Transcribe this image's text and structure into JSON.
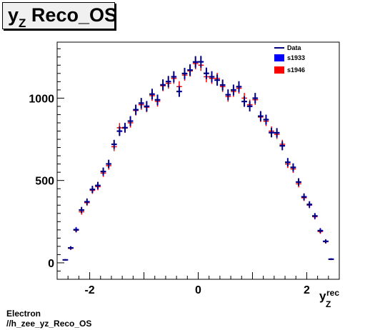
{
  "title": {
    "main": "y",
    "sub": "Z",
    "rest": " Reco_OS"
  },
  "footer": {
    "line1": "Electron",
    "line2": "//h_zee_yz_Reco_OS"
  },
  "colors": {
    "data": "#000080",
    "s1933": "#0000ff",
    "s1946": "#ff0000"
  },
  "chart_data": {
    "type": "scatter",
    "xlabel": {
      "main": "y",
      "sub": "Z",
      "sup": "rec"
    },
    "ylabel": "",
    "xlim": [
      -2.6,
      2.6
    ],
    "ylim": [
      -100,
      1340
    ],
    "x_ticks": [
      -2,
      0,
      2
    ],
    "x_tick_labels": [
      "-2",
      "0",
      "2"
    ],
    "y_ticks": [
      0,
      500,
      1000
    ],
    "y_tick_labels": [
      "0",
      "500",
      "1000"
    ],
    "legend_position": "top-right",
    "legend": [
      {
        "label": "Data",
        "style": "line"
      },
      {
        "label": "s1933",
        "style": "box"
      },
      {
        "label": "s1946",
        "style": "box"
      }
    ],
    "x": [
      -2.45,
      -2.35,
      -2.25,
      -2.15,
      -2.05,
      -1.95,
      -1.85,
      -1.75,
      -1.65,
      -1.55,
      -1.45,
      -1.35,
      -1.25,
      -1.15,
      -1.05,
      -0.95,
      -0.85,
      -0.75,
      -0.65,
      -0.55,
      -0.45,
      -0.35,
      -0.25,
      -0.15,
      -0.05,
      0.05,
      0.15,
      0.25,
      0.35,
      0.45,
      0.55,
      0.65,
      0.75,
      0.85,
      0.95,
      1.05,
      1.15,
      1.25,
      1.35,
      1.45,
      1.55,
      1.65,
      1.75,
      1.85,
      1.95,
      2.05,
      2.15,
      2.25,
      2.35,
      2.45
    ],
    "series": [
      {
        "name": "Data",
        "values": [
          18,
          90,
          200,
          320,
          370,
          445,
          470,
          555,
          600,
          720,
          800,
          820,
          860,
          930,
          970,
          950,
          1025,
          990,
          1080,
          1100,
          1130,
          1040,
          1150,
          1170,
          1220,
          1220,
          1150,
          1130,
          1110,
          1080,
          1020,
          1050,
          1070,
          980,
          950,
          1000,
          890,
          870,
          790,
          790,
          710,
          610,
          580,
          490,
          400,
          355,
          285,
          195,
          130,
          22
        ]
      },
      {
        "name": "s1933",
        "values": [
          18,
          92,
          203,
          322,
          372,
          447,
          468,
          553,
          602,
          718,
          798,
          822,
          862,
          928,
          968,
          952,
          1023,
          988,
          1082,
          1102,
          1128,
          1042,
          1148,
          1172,
          1218,
          1222,
          1152,
          1128,
          1108,
          1078,
          1022,
          1048,
          1068,
          978,
          952,
          998,
          892,
          868,
          792,
          788,
          712,
          612,
          578,
          492,
          402,
          352,
          283,
          197,
          132,
          23
        ]
      },
      {
        "name": "s1946",
        "values": [
          17,
          88,
          198,
          310,
          365,
          440,
          462,
          545,
          590,
          705,
          820,
          818,
          850,
          925,
          960,
          945,
          1015,
          980,
          1075,
          1090,
          1120,
          1070,
          1140,
          1165,
          1210,
          1200,
          1130,
          1120,
          1120,
          1070,
          1010,
          1040,
          1060,
          1000,
          960,
          990,
          885,
          860,
          800,
          780,
          720,
          600,
          570,
          480,
          395,
          350,
          280,
          190,
          128,
          21
        ]
      }
    ]
  }
}
